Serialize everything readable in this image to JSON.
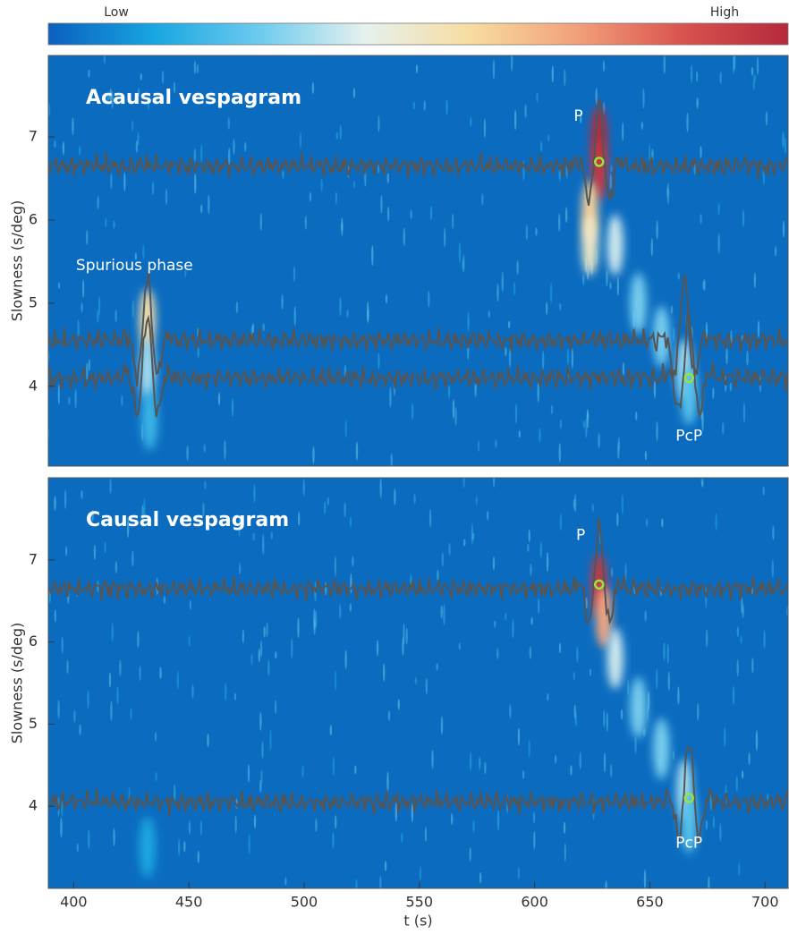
{
  "colorbar": {
    "low": "Low",
    "high": "High",
    "colors": [
      "#0a5fbf",
      "#18a6e0",
      "#6dcbef",
      "#e6f1ee",
      "#f7dca0",
      "#f2a07a",
      "#d9534f",
      "#b52a3c"
    ]
  },
  "chart_data": [
    {
      "type": "heatmap",
      "title": "Acausal vespagram",
      "ylabel": "Slowness (s/deg)",
      "xlim": [
        389,
        710
      ],
      "ylim": [
        3.04,
        7.98
      ],
      "yticks": [
        4,
        5,
        6,
        7
      ],
      "background": "#0b6cbf",
      "trace_color": "#555555",
      "pick_color": "#9be33a",
      "energy": [
        {
          "t": 432,
          "s": 4.8,
          "level": 0.55
        },
        {
          "t": 432,
          "s": 4.2,
          "level": 0.35
        },
        {
          "t": 433,
          "s": 3.6,
          "level": 0.2
        },
        {
          "t": 628,
          "s": 7.0,
          "level": 1.0
        },
        {
          "t": 628,
          "s": 6.6,
          "level": 0.95
        },
        {
          "t": 624,
          "s": 6.1,
          "level": 0.6
        },
        {
          "t": 624,
          "s": 5.7,
          "level": 0.5
        },
        {
          "t": 635,
          "s": 5.7,
          "level": 0.4
        },
        {
          "t": 645,
          "s": 5.0,
          "level": 0.3
        },
        {
          "t": 655,
          "s": 4.6,
          "level": 0.3
        },
        {
          "t": 665,
          "s": 4.2,
          "level": 0.35
        },
        {
          "t": 667,
          "s": 3.9,
          "level": 0.25
        }
      ],
      "traces": [
        {
          "slowness": 6.65,
          "wavelets": [
            628
          ]
        },
        {
          "slowness": 4.55,
          "wavelets": [
            432,
            665
          ]
        },
        {
          "slowness": 4.1,
          "wavelets": [
            432,
            667
          ]
        }
      ],
      "picks": {
        "t": [
          628,
          667
        ],
        "s": [
          6.7,
          4.1
        ]
      },
      "annotations": [
        {
          "text": "P",
          "t": 619,
          "s": 7.25
        },
        {
          "text": "Spurious phase",
          "t": 401,
          "s": 5.45
        },
        {
          "text": "PcP",
          "t": 667,
          "s": 3.4
        }
      ]
    },
    {
      "type": "heatmap",
      "title": "Causal vespagram",
      "ylabel": "Slowness (s/deg)",
      "xlabel": "t (s)",
      "xlim": [
        389,
        710
      ],
      "ylim": [
        3.0,
        8.0
      ],
      "yticks": [
        4,
        5,
        6,
        7
      ],
      "xticks": [
        400,
        450,
        500,
        550,
        600,
        650,
        700
      ],
      "background": "#0b6cbf",
      "trace_color": "#555555",
      "pick_color": "#9be33a",
      "energy": [
        {
          "t": 628,
          "s": 6.7,
          "level": 0.95
        },
        {
          "t": 630,
          "s": 6.3,
          "level": 0.7
        },
        {
          "t": 635,
          "s": 5.8,
          "level": 0.4
        },
        {
          "t": 645,
          "s": 5.2,
          "level": 0.3
        },
        {
          "t": 655,
          "s": 4.7,
          "level": 0.3
        },
        {
          "t": 665,
          "s": 4.2,
          "level": 0.35
        },
        {
          "t": 667,
          "s": 3.8,
          "level": 0.25
        },
        {
          "t": 432,
          "s": 3.5,
          "level": 0.15
        }
      ],
      "traces": [
        {
          "slowness": 6.65,
          "wavelets": [
            628
          ]
        },
        {
          "slowness": 4.05,
          "wavelets": [
            667
          ]
        }
      ],
      "picks": {
        "t": [
          628,
          667
        ],
        "s": [
          6.7,
          4.1
        ]
      },
      "annotations": [
        {
          "text": "P",
          "t": 620,
          "s": 7.3
        },
        {
          "text": "PcP",
          "t": 667,
          "s": 3.55
        }
      ]
    }
  ]
}
